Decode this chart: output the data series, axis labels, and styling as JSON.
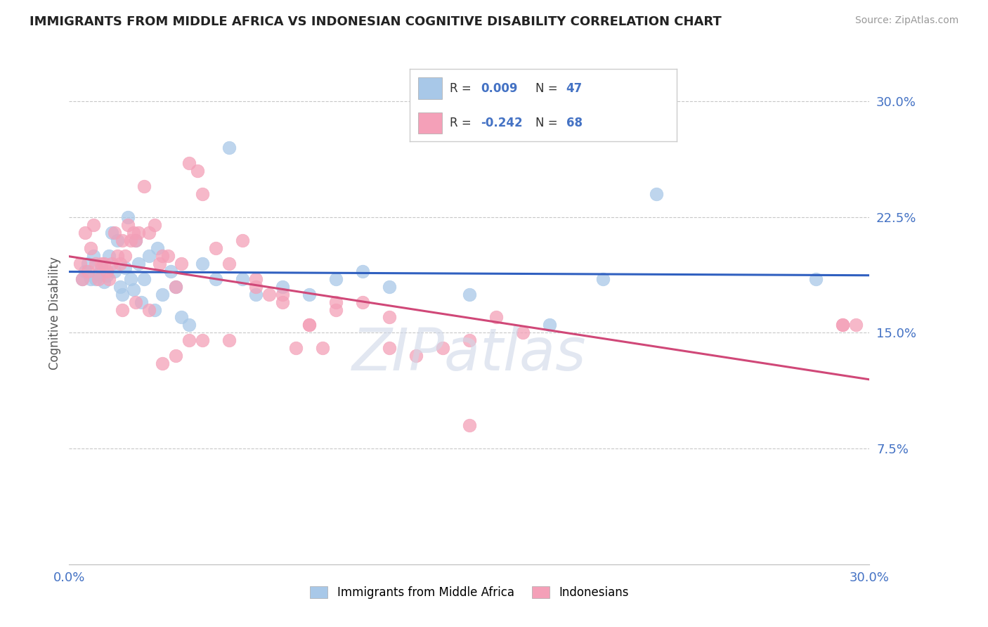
{
  "title": "IMMIGRANTS FROM MIDDLE AFRICA VS INDONESIAN COGNITIVE DISABILITY CORRELATION CHART",
  "source": "Source: ZipAtlas.com",
  "ylabel": "Cognitive Disability",
  "xlim": [
    0.0,
    0.3
  ],
  "ylim": [
    0.0,
    0.325
  ],
  "yticks": [
    0.075,
    0.15,
    0.225,
    0.3
  ],
  "ytick_labels": [
    "7.5%",
    "15.0%",
    "22.5%",
    "30.0%"
  ],
  "blue_R": 0.009,
  "blue_N": 47,
  "pink_R": -0.242,
  "pink_N": 68,
  "blue_color": "#a8c8e8",
  "pink_color": "#f4a0b8",
  "blue_line_color": "#3060c0",
  "pink_line_color": "#d04878",
  "grid_color": "#c8c8c8",
  "background_color": "#ffffff",
  "title_color": "#222222",
  "axis_label_color": "#4472c4",
  "watermark_color": "#d0d8e8",
  "blue_scatter_x": [
    0.005,
    0.006,
    0.007,
    0.008,
    0.009,
    0.01,
    0.011,
    0.012,
    0.013,
    0.014,
    0.015,
    0.016,
    0.017,
    0.018,
    0.019,
    0.02,
    0.021,
    0.022,
    0.023,
    0.024,
    0.025,
    0.026,
    0.027,
    0.028,
    0.03,
    0.032,
    0.033,
    0.035,
    0.038,
    0.04,
    0.042,
    0.045,
    0.05,
    0.055,
    0.06,
    0.065,
    0.07,
    0.08,
    0.09,
    0.1,
    0.11,
    0.12,
    0.15,
    0.18,
    0.2,
    0.22,
    0.28
  ],
  "blue_scatter_y": [
    0.185,
    0.19,
    0.195,
    0.185,
    0.2,
    0.185,
    0.188,
    0.192,
    0.183,
    0.187,
    0.2,
    0.215,
    0.19,
    0.21,
    0.18,
    0.175,
    0.192,
    0.225,
    0.185,
    0.178,
    0.21,
    0.195,
    0.17,
    0.185,
    0.2,
    0.165,
    0.205,
    0.175,
    0.19,
    0.18,
    0.16,
    0.155,
    0.195,
    0.185,
    0.27,
    0.185,
    0.175,
    0.18,
    0.175,
    0.185,
    0.19,
    0.18,
    0.175,
    0.155,
    0.185,
    0.24,
    0.185
  ],
  "pink_scatter_x": [
    0.004,
    0.005,
    0.006,
    0.007,
    0.008,
    0.009,
    0.01,
    0.011,
    0.012,
    0.013,
    0.014,
    0.015,
    0.016,
    0.017,
    0.018,
    0.019,
    0.02,
    0.021,
    0.022,
    0.023,
    0.024,
    0.025,
    0.026,
    0.028,
    0.03,
    0.032,
    0.034,
    0.035,
    0.037,
    0.04,
    0.042,
    0.045,
    0.048,
    0.05,
    0.055,
    0.06,
    0.065,
    0.07,
    0.075,
    0.08,
    0.085,
    0.09,
    0.095,
    0.1,
    0.11,
    0.12,
    0.13,
    0.14,
    0.15,
    0.16,
    0.02,
    0.025,
    0.03,
    0.035,
    0.04,
    0.045,
    0.05,
    0.06,
    0.07,
    0.08,
    0.09,
    0.1,
    0.12,
    0.15,
    0.17,
    0.29,
    0.29,
    0.295
  ],
  "pink_scatter_y": [
    0.195,
    0.185,
    0.215,
    0.19,
    0.205,
    0.22,
    0.195,
    0.185,
    0.195,
    0.195,
    0.19,
    0.185,
    0.195,
    0.215,
    0.2,
    0.195,
    0.21,
    0.2,
    0.22,
    0.21,
    0.215,
    0.21,
    0.215,
    0.245,
    0.215,
    0.22,
    0.195,
    0.2,
    0.2,
    0.18,
    0.195,
    0.26,
    0.255,
    0.24,
    0.205,
    0.195,
    0.21,
    0.185,
    0.175,
    0.17,
    0.14,
    0.155,
    0.14,
    0.17,
    0.17,
    0.16,
    0.135,
    0.14,
    0.145,
    0.16,
    0.165,
    0.17,
    0.165,
    0.13,
    0.135,
    0.145,
    0.145,
    0.145,
    0.18,
    0.175,
    0.155,
    0.165,
    0.14,
    0.09,
    0.15,
    0.155,
    0.155,
    0.155
  ],
  "legend_label_blue": "Immigrants from Middle Africa",
  "legend_label_pink": "Indonesians"
}
